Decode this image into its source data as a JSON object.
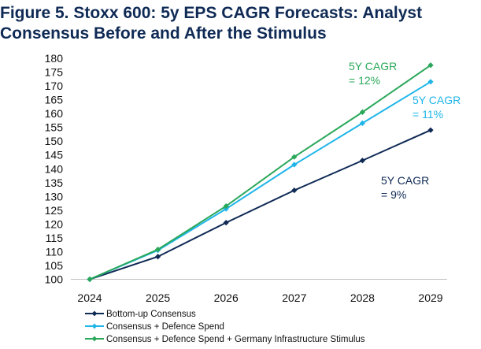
{
  "title": "Figure 5. Stoxx 600: 5y EPS CAGR Forecasts: Analyst\nConsensus Before and After the Stimulus",
  "chart_data": {
    "type": "line",
    "title": "Figure 5. Stoxx 600: 5y EPS CAGR Forecasts: Analyst Consensus Before and After the Stimulus",
    "xlabel": "",
    "ylabel": "",
    "categories": [
      "2024",
      "2025",
      "2026",
      "2027",
      "2028",
      "2029"
    ],
    "ylim": [
      100,
      180
    ],
    "yticks": [
      100,
      105,
      110,
      115,
      120,
      125,
      130,
      135,
      140,
      145,
      150,
      155,
      160,
      165,
      170,
      175,
      180
    ],
    "grid": false,
    "legend_position": "bottom-left",
    "series": [
      {
        "name": "Bottom-up Consensus",
        "color": "#0f2a55",
        "values": [
          100,
          108.2,
          120.5,
          132.2,
          143,
          154
        ]
      },
      {
        "name": "Consensus + Defence Spend",
        "color": "#1fb5e9",
        "values": [
          100,
          110.5,
          125.5,
          141.5,
          156.5,
          171.5
        ]
      },
      {
        "name": "Consensus + Defence Spend + Germany Infrastructure Stimulus",
        "color": "#2aa85a",
        "values": [
          100,
          110.8,
          126.5,
          144.3,
          160.5,
          177.5
        ]
      }
    ],
    "annotations": [
      {
        "line1": "5Y CAGR",
        "line2": "= 12%",
        "color": "#2aa85a"
      },
      {
        "line1": "5Y CAGR",
        "line2": "= 11%",
        "color": "#1fb5e9"
      },
      {
        "line1": "5Y CAGR",
        "line2": "= 9%",
        "color": "#0f2a55"
      }
    ]
  }
}
